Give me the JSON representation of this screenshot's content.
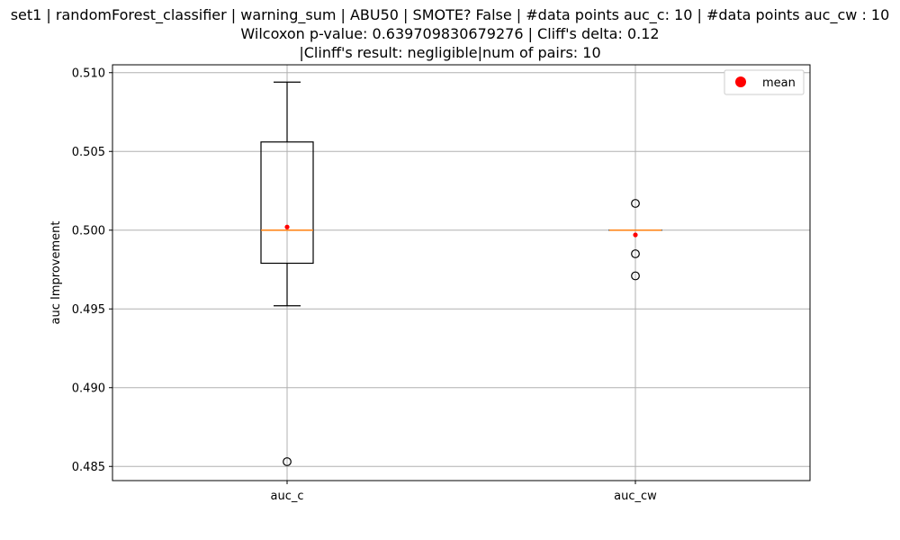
{
  "title_lines": [
    "set1 | randomForest_classifier | warning_sum | ABU50 | SMOTE? False | #data points auc_c: 10 | #data points auc_cw : 10",
    "Wilcoxon p-value: 0.639709830679276 | Cliff's delta: 0.12",
    "|Clinff's result: negligible|num of pairs: 10"
  ],
  "chart_data": {
    "type": "box",
    "ylabel": "auc Improvement",
    "xlabel": "",
    "ylim": [
      0.4841,
      0.5105
    ],
    "yticks": [
      0.485,
      0.49,
      0.495,
      0.5,
      0.505,
      0.51
    ],
    "ytick_labels": [
      "0.485",
      "0.490",
      "0.495",
      "0.500",
      "0.505",
      "0.510"
    ],
    "grid": true,
    "legend": {
      "placement": "top-right",
      "entries": [
        {
          "label": "mean",
          "marker": "red-dot"
        }
      ]
    },
    "boxes": [
      {
        "category": "auc_c",
        "whisker_low": 0.4952,
        "q1": 0.4979,
        "median": 0.5,
        "q3": 0.5056,
        "whisker_high": 0.5094,
        "mean": 0.5002,
        "outliers": [
          0.4853
        ]
      },
      {
        "category": "auc_cw",
        "whisker_low": 0.5,
        "q1": 0.5,
        "median": 0.5,
        "q3": 0.5,
        "whisker_high": 0.5,
        "mean": 0.4997,
        "outliers": [
          0.5017,
          0.4985,
          0.4971
        ]
      }
    ],
    "colors": {
      "median": "#ff7f0e",
      "mean": "#ff0000",
      "grid": "#b0b0b0",
      "box": "#000000"
    }
  }
}
